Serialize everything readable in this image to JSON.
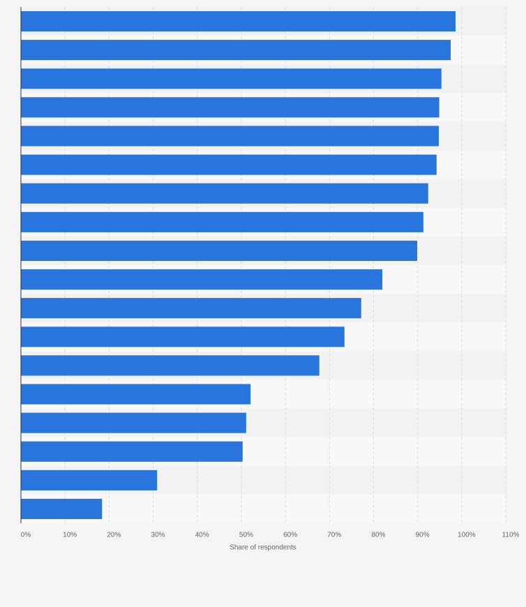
{
  "chart_data": {
    "type": "bar",
    "orientation": "horizontal",
    "categories": [
      null,
      null,
      null,
      null,
      null,
      null,
      null,
      null,
      null,
      null,
      null,
      null,
      null,
      null,
      null,
      null,
      null,
      null
    ],
    "values": [
      98.6,
      97.5,
      95.4,
      94.9,
      94.8,
      94.3,
      92.4,
      91.3,
      89.9,
      82.0,
      77.2,
      73.4,
      67.7,
      52.1,
      51.1,
      50.3,
      30.9,
      18.4
    ],
    "color": "#2876dd",
    "xlabel": "Share of respondents",
    "xlim": [
      0,
      110
    ],
    "xticks": [
      {
        "value": 0,
        "label": "0%"
      },
      {
        "value": 10,
        "label": "10%"
      },
      {
        "value": 20,
        "label": "20%"
      },
      {
        "value": 30,
        "label": "30%"
      },
      {
        "value": 40,
        "label": "40%"
      },
      {
        "value": 50,
        "label": "50%"
      },
      {
        "value": 60,
        "label": "60%"
      },
      {
        "value": 70,
        "label": "70%"
      },
      {
        "value": 80,
        "label": "80%"
      },
      {
        "value": 90,
        "label": "90%"
      },
      {
        "value": 100,
        "label": "100%"
      },
      {
        "value": 110,
        "label": "110%"
      }
    ],
    "grid": true
  }
}
